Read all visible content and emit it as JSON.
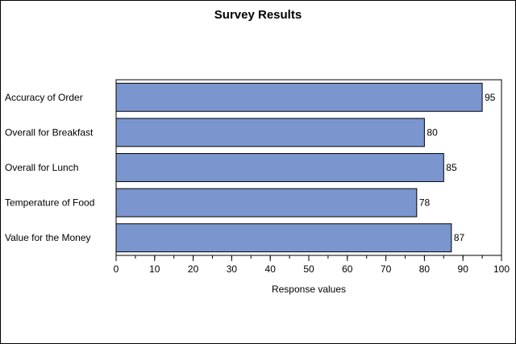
{
  "chart_data": {
    "type": "bar",
    "orientation": "horizontal",
    "title": "Survey Results",
    "xlabel": "Response values",
    "ylabel": "",
    "categories": [
      "Accuracy of Order",
      "Overall for Breakfast",
      "Overall for Lunch",
      "Temperature of Food",
      "Value for the Money"
    ],
    "values": [
      95,
      80,
      85,
      78,
      87
    ],
    "xlim": [
      0,
      100
    ],
    "major_ticks": [
      0,
      10,
      20,
      30,
      40,
      50,
      60,
      70,
      80,
      90,
      100
    ],
    "minor_tick_step": 5,
    "data_labels": true,
    "grid": false,
    "bar_color": "#7b96cf",
    "bar_edge_color": "#000000"
  }
}
